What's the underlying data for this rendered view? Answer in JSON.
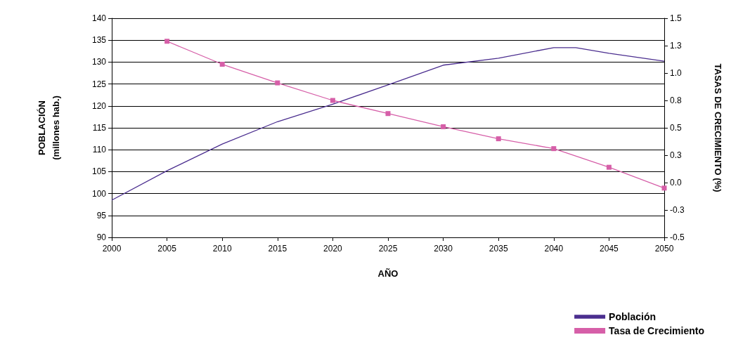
{
  "chart_data": {
    "type": "line",
    "xlabel": "AÑO",
    "ylabel": "POBLACIÓN\n(millones hab.)",
    "y2label": "TASAS DE CRECIMIENTO (%)",
    "xlim": [
      2000,
      2050
    ],
    "xticks": [
      2000,
      2005,
      2010,
      2015,
      2020,
      2025,
      2030,
      2035,
      2040,
      2045,
      2050
    ],
    "ylim": [
      90,
      140
    ],
    "yticks": [
      90,
      95,
      100,
      105,
      110,
      115,
      120,
      125,
      130,
      135,
      140
    ],
    "y2lim": [
      -0.5,
      1.5
    ],
    "y2ticks": [
      {
        "value": -0.5,
        "label": "-0.5"
      },
      {
        "value": -0.25,
        "label": "-0.3"
      },
      {
        "value": 0,
        "label": "0.0"
      },
      {
        "value": 0.25,
        "label": "0.3"
      },
      {
        "value": 0.5,
        "label": "0.5"
      },
      {
        "value": 0.75,
        "label": "0.8"
      },
      {
        "value": 1,
        "label": "1.0"
      },
      {
        "value": 1.25,
        "label": "1.3"
      },
      {
        "value": 1.5,
        "label": "1.5"
      }
    ],
    "grid": "y",
    "legend": "bottom right",
    "series": [
      {
        "name": "Población",
        "color": "#4b2e8f",
        "marker": "none",
        "x": [
          2000,
          2005,
          2010,
          2015,
          2020,
          2025,
          2030,
          2035,
          2040,
          2042,
          2045,
          2050
        ],
        "values": [
          98.5,
          105.2,
          111.3,
          116.4,
          120.4,
          124.8,
          129.3,
          130.9,
          133.3,
          133.3,
          132.0,
          130.2
        ]
      },
      {
        "name": "Tasa de Crecimiento",
        "color": "#d65fa8",
        "marker": "square",
        "axis": "y2",
        "x": [
          2005,
          2010,
          2015,
          2020,
          2025,
          2030,
          2035,
          2040,
          2045,
          2050
        ],
        "values": [
          1.29,
          1.08,
          0.91,
          0.75,
          0.63,
          0.51,
          0.4,
          0.31,
          0.14,
          -0.05
        ]
      }
    ]
  }
}
